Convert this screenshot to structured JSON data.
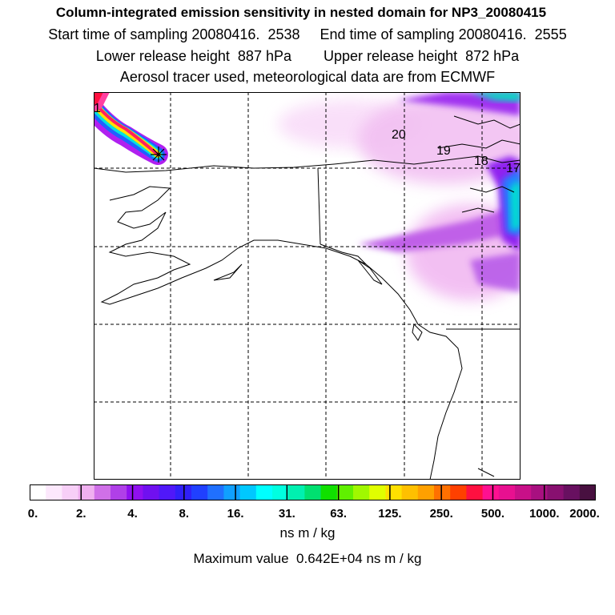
{
  "header": {
    "title": "Column-integrated emission sensitivity in nested domain for NP3_20080415",
    "sampling": "Start time of sampling 20080416.  2538     End time of sampling 20080416.  2555",
    "release": "Lower release height  887 hPa        Upper release height  872 hPa",
    "note": "Aerosol tracer used, meteorological data are from ECMWF"
  },
  "map": {
    "day_labels": [
      "1",
      "20",
      "19",
      "18",
      "17"
    ],
    "release_marker": "release-point"
  },
  "colorbar": {
    "tick_labels": [
      "0.",
      "2.",
      "4.",
      "8.",
      "16.",
      "31.",
      "63.",
      "125.",
      "250.",
      "500.",
      "1000.",
      "2000."
    ],
    "colors": [
      "#ffffff",
      "#fce8fc",
      "#f7cff7",
      "#f0b0f0",
      "#d070e8",
      "#b040e8",
      "#9010f0",
      "#7010f0",
      "#5018f8",
      "#3020f8",
      "#2040ff",
      "#2070ff",
      "#10a0ff",
      "#00c8ff",
      "#00ffff",
      "#00ffe0",
      "#00f0b0",
      "#00e070",
      "#10e000",
      "#60f000",
      "#a0f800",
      "#e0ff00",
      "#ffe000",
      "#ffc000",
      "#ffa000",
      "#ff7000",
      "#ff4000",
      "#ff1040",
      "#ff1090",
      "#e81090",
      "#c81088",
      "#a81080",
      "#881070",
      "#681060",
      "#481040"
    ],
    "unit": "ns m / kg",
    "maximum": "Maximum value  0.642E+04 ns m / kg"
  }
}
